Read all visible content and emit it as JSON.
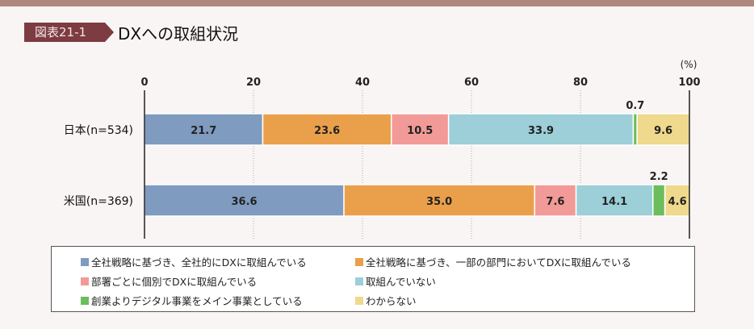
{
  "header": {
    "badge": "図表21-1",
    "title": "DXへの取組状況"
  },
  "chart_data": {
    "type": "bar",
    "orientation": "horizontal",
    "stacked": true,
    "title": "DXへの取組状況",
    "unit_label": "(%)",
    "xlim": [
      0,
      100
    ],
    "xticks": [
      "0",
      "20",
      "40",
      "60",
      "80",
      "100"
    ],
    "categories": [
      "日本(n=534)",
      "米国(n=369)"
    ],
    "series": [
      {
        "name": "全社戦略に基づき、全社的にDXに取組んでいる",
        "color": "#7f9bc0",
        "values": [
          21.7,
          36.6
        ]
      },
      {
        "name": "全社戦略に基づき、一部の部門においてDXに取組んでいる",
        "color": "#eaa04a",
        "values": [
          23.6,
          35.0
        ]
      },
      {
        "name": "部署ごとに個別でDXに取組んでいる",
        "color": "#f29a97",
        "values": [
          10.5,
          7.6
        ]
      },
      {
        "name": "取組んでいない",
        "color": "#9ccfd7",
        "values": [
          33.9,
          14.1
        ]
      },
      {
        "name": "創業よりデジタル事業をメイン事業としている",
        "color": "#6cbd5b",
        "values": [
          0.7,
          2.2
        ]
      },
      {
        "name": "わからない",
        "color": "#eed98c",
        "values": [
          9.6,
          4.6
        ]
      }
    ],
    "value_labels": [
      [
        "21.7",
        "23.6",
        "10.5",
        "33.9",
        "0.7",
        "9.6"
      ],
      [
        "36.6",
        "35.0",
        "7.6",
        "14.1",
        "2.2",
        "4.6"
      ]
    ],
    "legend_position": "bottom"
  }
}
